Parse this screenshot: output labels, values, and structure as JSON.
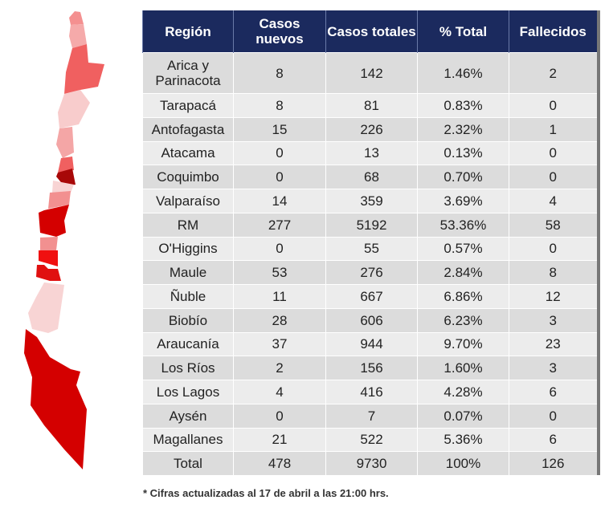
{
  "table": {
    "headers": [
      "Región",
      "Casos nuevos",
      "Casos totales",
      "% Total",
      "Fallecidos"
    ],
    "rows": [
      [
        "Arica y Parinacota",
        "8",
        "142",
        "1.46%",
        "2"
      ],
      [
        "Tarapacá",
        "8",
        "81",
        "0.83%",
        "0"
      ],
      [
        "Antofagasta",
        "15",
        "226",
        "2.32%",
        "1"
      ],
      [
        "Atacama",
        "0",
        "13",
        "0.13%",
        "0"
      ],
      [
        "Coquimbo",
        "0",
        "68",
        "0.70%",
        "0"
      ],
      [
        "Valparaíso",
        "14",
        "359",
        "3.69%",
        "4"
      ],
      [
        "RM",
        "277",
        "5192",
        "53.36%",
        "58"
      ],
      [
        "O'Higgins",
        "0",
        "55",
        "0.57%",
        "0"
      ],
      [
        "Maule",
        "53",
        "276",
        "2.84%",
        "8"
      ],
      [
        "Ñuble",
        "11",
        "667",
        "6.86%",
        "12"
      ],
      [
        "Biobío",
        "28",
        "606",
        "6.23%",
        "3"
      ],
      [
        "Araucanía",
        "37",
        "944",
        "9.70%",
        "23"
      ],
      [
        "Los Ríos",
        "2",
        "156",
        "1.60%",
        "3"
      ],
      [
        "Los Lagos",
        "4",
        "416",
        "4.28%",
        "6"
      ],
      [
        "Aysén",
        "0",
        "7",
        "0.07%",
        "0"
      ],
      [
        "Magallanes",
        "21",
        "522",
        "5.36%",
        "6"
      ],
      [
        "Total",
        "478",
        "9730",
        "100%",
        "126"
      ]
    ]
  },
  "footnote": "* Cifras actualizadas al 17 de abril a las 21:00 hrs.",
  "chart_data": {
    "type": "table",
    "title": "",
    "columns": [
      "Región",
      "Casos nuevos",
      "Casos totales",
      "% Total",
      "Fallecidos"
    ]
  },
  "colors": {
    "header": "#1b2a5e",
    "dark": "#a00000",
    "strong": "#d40000",
    "mid": "#f06060",
    "light": "#f4a0a0",
    "pale": "#f8d0d0"
  }
}
